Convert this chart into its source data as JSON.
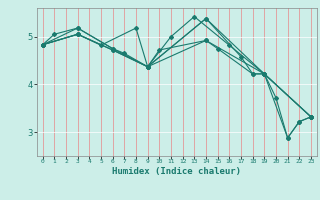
{
  "title": "",
  "xlabel": "Humidex (Indice chaleur)",
  "ylabel": "",
  "bg_color": "#cceee8",
  "line_color": "#1a7a6e",
  "grid_color": "#ffffff",
  "xlim": [
    -0.5,
    23.5
  ],
  "ylim": [
    2.5,
    5.6
  ],
  "yticks": [
    3,
    4,
    5
  ],
  "xticks": [
    0,
    1,
    2,
    3,
    4,
    5,
    6,
    7,
    8,
    9,
    10,
    11,
    12,
    13,
    14,
    15,
    16,
    17,
    18,
    19,
    20,
    21,
    22,
    23
  ],
  "lines": [
    {
      "x": [
        0,
        3,
        6,
        9,
        14,
        19,
        21,
        22,
        23
      ],
      "y": [
        4.83,
        5.05,
        4.72,
        4.37,
        4.92,
        4.22,
        2.88,
        3.22,
        3.32
      ]
    },
    {
      "x": [
        0,
        3,
        6,
        9,
        14,
        19,
        23
      ],
      "y": [
        4.83,
        5.18,
        4.75,
        4.37,
        5.38,
        4.22,
        3.32
      ]
    },
    {
      "x": [
        0,
        3,
        6,
        9,
        11,
        13,
        16,
        19,
        23
      ],
      "y": [
        4.83,
        5.05,
        4.72,
        4.37,
        5.0,
        5.42,
        4.82,
        4.22,
        3.32
      ]
    },
    {
      "x": [
        0,
        3,
        5,
        8,
        9,
        10,
        14,
        15,
        18,
        19,
        20,
        21,
        22,
        23
      ],
      "y": [
        4.83,
        5.05,
        4.82,
        5.18,
        4.37,
        4.72,
        4.92,
        4.75,
        4.22,
        4.22,
        3.72,
        2.88,
        3.22,
        3.32
      ]
    },
    {
      "x": [
        0,
        1,
        3,
        6,
        7,
        9,
        14,
        17,
        18,
        19,
        23
      ],
      "y": [
        4.83,
        5.05,
        5.18,
        4.75,
        4.65,
        4.37,
        5.38,
        4.58,
        4.22,
        4.22,
        3.32
      ]
    }
  ]
}
